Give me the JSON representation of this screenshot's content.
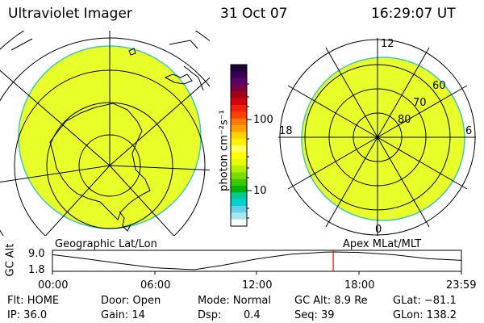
{
  "header": {
    "title": "Ultraviolet Imager",
    "date": "31 Oct 07",
    "time": "16:29:07 UT"
  },
  "colorbar": {
    "label": "photon cm⁻²s⁻¹",
    "ticks": [
      "100",
      "10"
    ],
    "colors": [
      "#1a0033",
      "#3a0055",
      "#5c0066",
      "#7a0044",
      "#a40010",
      "#d40010",
      "#f02010",
      "#ff4000",
      "#ff7a00",
      "#ffa000",
      "#ffd200",
      "#fff200",
      "#ffff66",
      "#ffff00",
      "#e6ff00",
      "#b4f000",
      "#78dc00",
      "#3cc800",
      "#00b400",
      "#00c896",
      "#00d2d2",
      "#64d2e6",
      "#aae6f0",
      "#ffffff"
    ]
  },
  "left_panel": {
    "label": "Geographic Lat/Lon",
    "fill_color": "#e8ff2a"
  },
  "right_panel": {
    "label": "Apex MLat/MLT",
    "fill_color": "#e8ff2a",
    "mlt_labels": {
      "top": "12",
      "bottom": "0",
      "left": "18",
      "right": "6"
    },
    "lat_labels": [
      "60",
      "70",
      "80"
    ]
  },
  "altitude_plot": {
    "ylabel": "GC Alt",
    "yticks": [
      "9.0",
      "1.8"
    ],
    "xticks": [
      "00:00",
      "06:00",
      "12:00",
      "18:00",
      "23:59"
    ],
    "marker_color": "#ff0000",
    "chart_data": {
      "type": "line",
      "x_hours": [
        0,
        2,
        4,
        6,
        8.3,
        10,
        12,
        14,
        16,
        16.5,
        18,
        20,
        22,
        23.98
      ],
      "gc_alt_re": [
        7.9,
        6.2,
        4.3,
        2.6,
        1.8,
        3.6,
        6.2,
        8.1,
        8.9,
        9.0,
        8.8,
        7.9,
        6.3,
        5.6
      ],
      "ylim": [
        1.8,
        9.0
      ],
      "marker_x_hour": 16.48
    }
  },
  "footer": {
    "flt": "Flt: HOME",
    "ip": "IP: 36.0",
    "door": "Door: Open",
    "gain": "Gain: 14",
    "mode": "Mode: Normal",
    "dsp_label": "Dsp:",
    "dsp_value": "0.4",
    "gc_alt": "GC Alt: 8.9 Re",
    "seq": "Seq: 39",
    "glat": "GLat: −81.1",
    "glon": "GLon: 138.2"
  }
}
